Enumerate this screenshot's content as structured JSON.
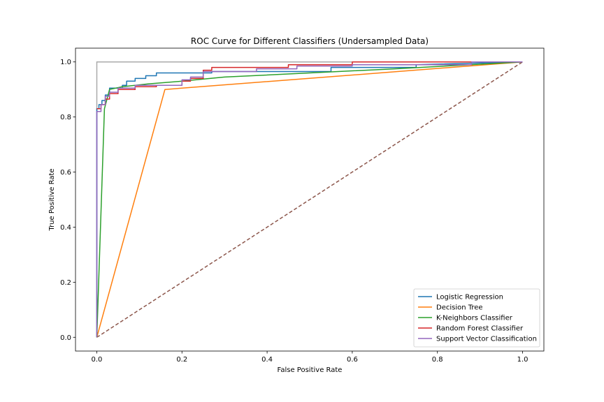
{
  "chart_data": {
    "type": "line",
    "title": "ROC Curve for Different Classifiers (Undersampled Data)",
    "xlabel": "False Positive Rate",
    "ylabel": "True Positive Rate",
    "xlim": [
      -0.05,
      1.05
    ],
    "ylim": [
      -0.05,
      1.05
    ],
    "xticks": [
      "0.0",
      "0.2",
      "0.4",
      "0.6",
      "0.8",
      "1.0"
    ],
    "yticks": [
      "0.0",
      "0.2",
      "0.4",
      "0.6",
      "0.8",
      "1.0"
    ],
    "grid": false,
    "legend_position": "lower-right",
    "reference_lines": [
      {
        "style": "dashed",
        "color": "#8c564b",
        "x": [
          0,
          1
        ],
        "y": [
          0,
          1
        ]
      },
      {
        "style": "solid",
        "color": "#aaaaaa",
        "x": [
          0,
          0,
          1
        ],
        "y": [
          0,
          1,
          1
        ]
      }
    ],
    "series": [
      {
        "name": "Logistic Regression",
        "color": "#1f77b4",
        "x": [
          0,
          0,
          0.005,
          0.005,
          0.012,
          0.012,
          0.02,
          0.02,
          0.03,
          0.03,
          0.06,
          0.06,
          0.07,
          0.07,
          0.09,
          0.09,
          0.115,
          0.115,
          0.14,
          0.14,
          0.27,
          0.27,
          0.55,
          0.55,
          0.75,
          0.75,
          1.0
        ],
        "y": [
          0,
          0.83,
          0.83,
          0.845,
          0.845,
          0.86,
          0.86,
          0.88,
          0.88,
          0.905,
          0.905,
          0.915,
          0.915,
          0.93,
          0.93,
          0.94,
          0.94,
          0.95,
          0.95,
          0.96,
          0.96,
          0.965,
          0.965,
          0.98,
          0.98,
          0.99,
          1.0
        ]
      },
      {
        "name": "Decision Tree",
        "color": "#ff7f0e",
        "x": [
          0,
          0.16,
          1.0
        ],
        "y": [
          0,
          0.9,
          1.0
        ]
      },
      {
        "name": "K-Neighbors Classifier",
        "color": "#2ca02c",
        "x": [
          0,
          0.018,
          0.03,
          0.06,
          0.12,
          0.2,
          0.3,
          0.5,
          0.7,
          1.0
        ],
        "y": [
          0,
          0.83,
          0.9,
          0.91,
          0.92,
          0.93,
          0.945,
          0.96,
          0.975,
          1.0
        ]
      },
      {
        "name": "Random Forest Classifier",
        "color": "#d62728",
        "x": [
          0,
          0.01,
          0.01,
          0.02,
          0.02,
          0.03,
          0.03,
          0.05,
          0.05,
          0.09,
          0.09,
          0.14,
          0.14,
          0.2,
          0.2,
          0.22,
          0.22,
          0.25,
          0.25,
          0.27,
          0.27,
          0.45,
          0.45,
          0.6,
          0.6,
          0.8,
          0.8,
          1.0
        ],
        "y": [
          0.83,
          0.83,
          0.845,
          0.845,
          0.865,
          0.865,
          0.885,
          0.885,
          0.9,
          0.9,
          0.91,
          0.91,
          0.915,
          0.915,
          0.93,
          0.93,
          0.94,
          0.94,
          0.97,
          0.97,
          0.98,
          0.98,
          0.99,
          0.99,
          1.0,
          1.0,
          1.0,
          1.0
        ]
      },
      {
        "name": "Support Vector Classification",
        "color": "#9467bd",
        "x": [
          0,
          0,
          0.01,
          0.01,
          0.02,
          0.02,
          0.03,
          0.03,
          0.05,
          0.05,
          0.09,
          0.09,
          0.2,
          0.2,
          0.22,
          0.22,
          0.25,
          0.25,
          0.375,
          0.375,
          0.47,
          0.47,
          0.6,
          0.6,
          0.88,
          0.88,
          1.0
        ],
        "y": [
          0,
          0.82,
          0.82,
          0.845,
          0.845,
          0.875,
          0.875,
          0.89,
          0.89,
          0.905,
          0.905,
          0.915,
          0.915,
          0.935,
          0.935,
          0.945,
          0.945,
          0.965,
          0.965,
          0.975,
          0.975,
          0.985,
          0.985,
          0.99,
          0.99,
          1.0,
          1.0
        ]
      }
    ]
  }
}
